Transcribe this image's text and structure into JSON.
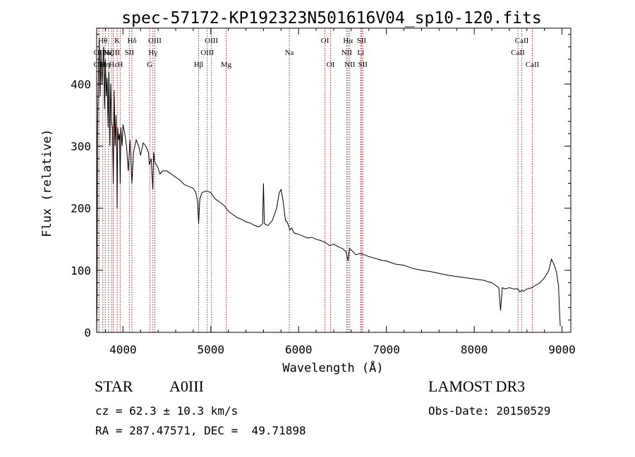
{
  "chart_data": {
    "type": "line",
    "title": "spec-57172-KP192323N501616V04_sp10-120.fits",
    "xlabel": "Wavelength (Å)",
    "ylabel": "Flux (relative)",
    "xlim": [
      3700,
      9100
    ],
    "ylim": [
      0,
      490
    ],
    "xticks": [
      4000,
      5000,
      6000,
      7000,
      8000,
      9000
    ],
    "yticks": [
      0,
      100,
      200,
      300,
      400
    ],
    "series": [
      {
        "name": "spectrum",
        "x": [
          3700,
          3705,
          3710,
          3720,
          3730,
          3740,
          3750,
          3760,
          3770,
          3780,
          3790,
          3800,
          3810,
          3820,
          3830,
          3840,
          3850,
          3860,
          3870,
          3880,
          3890,
          3900,
          3910,
          3920,
          3930,
          3933,
          3940,
          3950,
          3960,
          3968,
          3975,
          3990,
          4000,
          4020,
          4040,
          4060,
          4080,
          4101,
          4120,
          4150,
          4180,
          4200,
          4230,
          4260,
          4290,
          4300,
          4320,
          4340,
          4350,
          4360,
          4380,
          4400,
          4420,
          4450,
          4500,
          4550,
          4600,
          4650,
          4700,
          4750,
          4800,
          4830,
          4850,
          4861,
          4875,
          4900,
          4950,
          5000,
          5050,
          5100,
          5150,
          5200,
          5250,
          5300,
          5350,
          5400,
          5450,
          5500,
          5550,
          5590,
          5600,
          5610,
          5650,
          5700,
          5750,
          5780,
          5800,
          5820,
          5850,
          5870,
          5890,
          5900,
          5920,
          5950,
          6000,
          6050,
          6100,
          6150,
          6200,
          6250,
          6300,
          6350,
          6400,
          6450,
          6500,
          6540,
          6563,
          6580,
          6620,
          6650,
          6700,
          6750,
          6800,
          6850,
          6900,
          6950,
          7000,
          7100,
          7200,
          7300,
          7400,
          7500,
          7600,
          7700,
          7800,
          7900,
          8000,
          8100,
          8200,
          8250,
          8280,
          8300,
          8320,
          8350,
          8400,
          8450,
          8498,
          8520,
          8542,
          8560,
          8600,
          8662,
          8700,
          8750,
          8800,
          8830,
          8850,
          8870,
          8880,
          8900,
          8920,
          8940,
          8960,
          8970,
          8980
        ],
        "y": [
          0,
          50,
          320,
          420,
          470,
          380,
          455,
          400,
          430,
          460,
          360,
          440,
          380,
          410,
          330,
          420,
          300,
          400,
          340,
          330,
          240,
          390,
          300,
          350,
          270,
          200,
          330,
          310,
          320,
          240,
          330,
          300,
          335,
          320,
          300,
          260,
          310,
          240,
          290,
          310,
          300,
          285,
          305,
          300,
          290,
          270,
          280,
          230,
          290,
          275,
          270,
          265,
          255,
          260,
          260,
          255,
          250,
          245,
          238,
          235,
          232,
          225,
          210,
          175,
          215,
          225,
          228,
          225,
          215,
          210,
          205,
          195,
          190,
          185,
          182,
          178,
          176,
          172,
          170,
          175,
          240,
          175,
          172,
          180,
          200,
          225,
          230,
          215,
          180,
          178,
          170,
          165,
          168,
          160,
          158,
          155,
          152,
          153,
          150,
          148,
          145,
          140,
          142,
          138,
          135,
          130,
          115,
          135,
          130,
          125,
          127,
          125,
          122,
          120,
          118,
          116,
          115,
          110,
          108,
          103,
          100,
          98,
          95,
          92,
          90,
          88,
          86,
          84,
          80,
          75,
          72,
          35,
          72,
          70,
          72,
          70,
          70,
          65,
          68,
          66,
          70,
          72,
          76,
          80,
          88,
          95,
          100,
          112,
          118,
          112,
          105,
          95,
          75,
          40,
          10
        ]
      }
    ],
    "lines": [
      {
        "wavelength": 3727,
        "label": "OII",
        "row": 3
      },
      {
        "wavelength": 3727,
        "label": "OII",
        "row": 2
      },
      {
        "wavelength": 3770,
        "label": "Hθ",
        "row": 1
      },
      {
        "wavelength": 3798,
        "label": "Hη",
        "row": 3
      },
      {
        "wavelength": 3835,
        "label": "Hζ",
        "row": 2
      },
      {
        "wavelength": 3869,
        "label": "NeIII",
        "row": 2
      },
      {
        "wavelength": 3889,
        "label": "Hε",
        "row": 3
      },
      {
        "wavelength": 3934,
        "label": "K",
        "row": 1
      },
      {
        "wavelength": 3968,
        "label": "H",
        "row": 3
      },
      {
        "wavelength": 4072,
        "label": "SII",
        "row": 2
      },
      {
        "wavelength": 4102,
        "label": "Hδ",
        "row": 1
      },
      {
        "wavelength": 4305,
        "label": "G",
        "row": 3
      },
      {
        "wavelength": 4341,
        "label": "Hγ",
        "row": 2
      },
      {
        "wavelength": 4363,
        "label": "OIII",
        "row": 1
      },
      {
        "wavelength": 4861,
        "label": "Hβ",
        "row": 3
      },
      {
        "wavelength": 4959,
        "label": "OIII",
        "row": 2
      },
      {
        "wavelength": 5007,
        "label": "OIII",
        "row": 1
      },
      {
        "wavelength": 5175,
        "label": "Mg",
        "row": 3
      },
      {
        "wavelength": 5894,
        "label": "Na",
        "row": 2
      },
      {
        "wavelength": 6300,
        "label": "OI",
        "row": 1
      },
      {
        "wavelength": 6364,
        "label": "OI",
        "row": 3
      },
      {
        "wavelength": 6548,
        "label": "NII",
        "row": 2
      },
      {
        "wavelength": 6563,
        "label": "Hα",
        "row": 1
      },
      {
        "wavelength": 6583,
        "label": "NII",
        "row": 3
      },
      {
        "wavelength": 6707,
        "label": "Li",
        "row": 2
      },
      {
        "wavelength": 6716,
        "label": "SII",
        "row": 1
      },
      {
        "wavelength": 6731,
        "label": "SII",
        "row": 3
      },
      {
        "wavelength": 8498,
        "label": "CaII",
        "row": 2
      },
      {
        "wavelength": 8542,
        "label": "CaII",
        "row": 1
      },
      {
        "wavelength": 8662,
        "label": "CaII",
        "row": 3
      }
    ]
  },
  "info": {
    "object_type": "STAR",
    "spectral_class": "A0III",
    "cz": "cz = 62.3 ± 10.3 km/s",
    "radec": "RA = 287.47571, DEC =  49.71898",
    "survey": "LAMOST DR3",
    "obs_date": "Obs-Date: 20150529"
  },
  "colors": {
    "spectrum": "#000000",
    "line_marker": "#b22222",
    "axis": "#000000"
  }
}
